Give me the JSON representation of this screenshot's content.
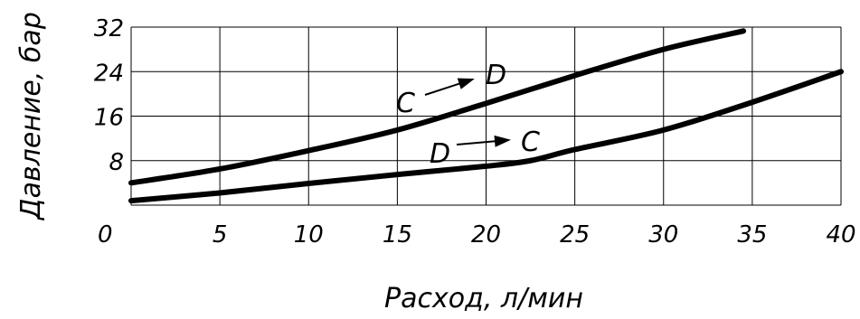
{
  "chart_data": {
    "type": "line",
    "xlabel": "Расход, л/мин",
    "ylabel": "Давление, бар",
    "xlim": [
      0,
      40
    ],
    "ylim": [
      0,
      32
    ],
    "xticks": [
      "0",
      "5",
      "10",
      "15",
      "20",
      "25",
      "30",
      "35",
      "40"
    ],
    "yticks": [
      "8",
      "16",
      "24",
      "32"
    ],
    "grid": true,
    "series": [
      {
        "name": "C → D",
        "x": [
          0,
          5,
          10,
          15,
          20,
          25,
          30,
          34.5
        ],
        "y": [
          4,
          6.5,
          9.8,
          13.5,
          18.3,
          23.3,
          28,
          31.3
        ]
      },
      {
        "name": "D → C",
        "x": [
          0,
          5,
          10,
          15,
          20,
          22.5,
          25,
          30,
          35,
          40
        ],
        "y": [
          0.8,
          2.2,
          3.9,
          5.5,
          7,
          8,
          10,
          13.5,
          18.5,
          24
        ]
      }
    ],
    "annotations": [
      {
        "from": "C",
        "to": "D",
        "series": 0
      },
      {
        "from": "D",
        "to": "C",
        "series": 1
      }
    ]
  }
}
